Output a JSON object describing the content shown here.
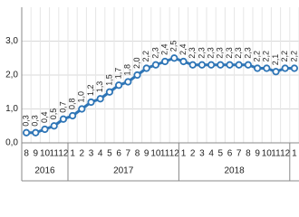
{
  "chart_data": {
    "type": "line",
    "categories": [
      "8",
      "9",
      "10",
      "11",
      "12",
      "1",
      "2",
      "3",
      "4",
      "5",
      "6",
      "7",
      "8",
      "9",
      "10",
      "11",
      "12",
      "1",
      "2",
      "3",
      "4",
      "5",
      "6",
      "7",
      "8",
      "9",
      "10",
      "11",
      "12",
      "1"
    ],
    "year_groups": [
      {
        "label": "2016",
        "months": 5
      },
      {
        "label": "2017",
        "months": 12
      },
      {
        "label": "2018",
        "months": 12
      }
    ],
    "series": [
      {
        "color": "#2e75b6",
        "values": [
          0.3,
          0.3,
          0.4,
          0.5,
          0.7,
          0.8,
          1.0,
          1.2,
          1.3,
          1.5,
          1.7,
          1.8,
          2.0,
          2.2,
          2.3,
          2.4,
          2.5,
          2.4,
          2.3,
          2.3,
          2.3,
          2.3,
          2.3,
          2.3,
          2.3,
          2.2,
          2.2,
          2.1,
          2.2,
          2.2
        ],
        "value_labels": [
          "0,3",
          "0,3",
          "0,4",
          "0,5",
          "0,7",
          "0,8",
          "1,0",
          "1,2",
          "1,3",
          "1,5",
          "1,7",
          "1,8",
          "2,0",
          "2,2",
          "2,3",
          "2,4",
          "2,5",
          "2,4",
          "2,3",
          "2,3",
          "2,3",
          "2,3",
          "2,3",
          "2,3",
          "2,3",
          "2,2",
          "2,2",
          "2,1",
          "2,2",
          "2,2"
        ]
      }
    ],
    "ylim": [
      0,
      4
    ],
    "yticks": [
      {
        "value": 0,
        "label": "0,0"
      },
      {
        "value": 1,
        "label": "1,0"
      },
      {
        "value": 2,
        "label": "2,0"
      },
      {
        "value": 3,
        "label": "3,0"
      }
    ],
    "grid": true
  }
}
